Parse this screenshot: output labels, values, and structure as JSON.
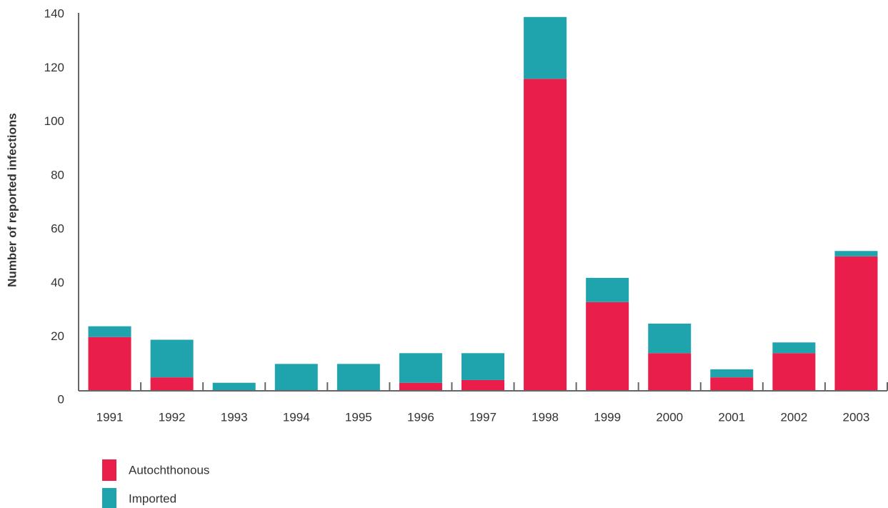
{
  "chart_data": {
    "type": "stacked_bar",
    "y_label": "Number of reported infections",
    "categories": [
      "1991",
      "1992",
      "1993",
      "1994",
      "1995",
      "1996",
      "1997",
      "1998",
      "1999",
      "2000",
      "2001",
      "2002",
      "2003"
    ],
    "series": [
      {
        "name": "Autochthonous",
        "color": "#e91e4a",
        "values": [
          20,
          5,
          0,
          0,
          0,
          3,
          4,
          116,
          33,
          14,
          5,
          14,
          50
        ]
      },
      {
        "name": "Imported",
        "color": "#1fa4ae",
        "values": [
          4,
          14,
          3,
          10,
          10,
          11,
          10,
          23,
          9,
          11,
          3,
          4,
          2
        ]
      }
    ],
    "ylim": [
      0,
      140
    ],
    "yticks": [
      0,
      20,
      40,
      60,
      80,
      100,
      120,
      140
    ],
    "grid": false
  }
}
